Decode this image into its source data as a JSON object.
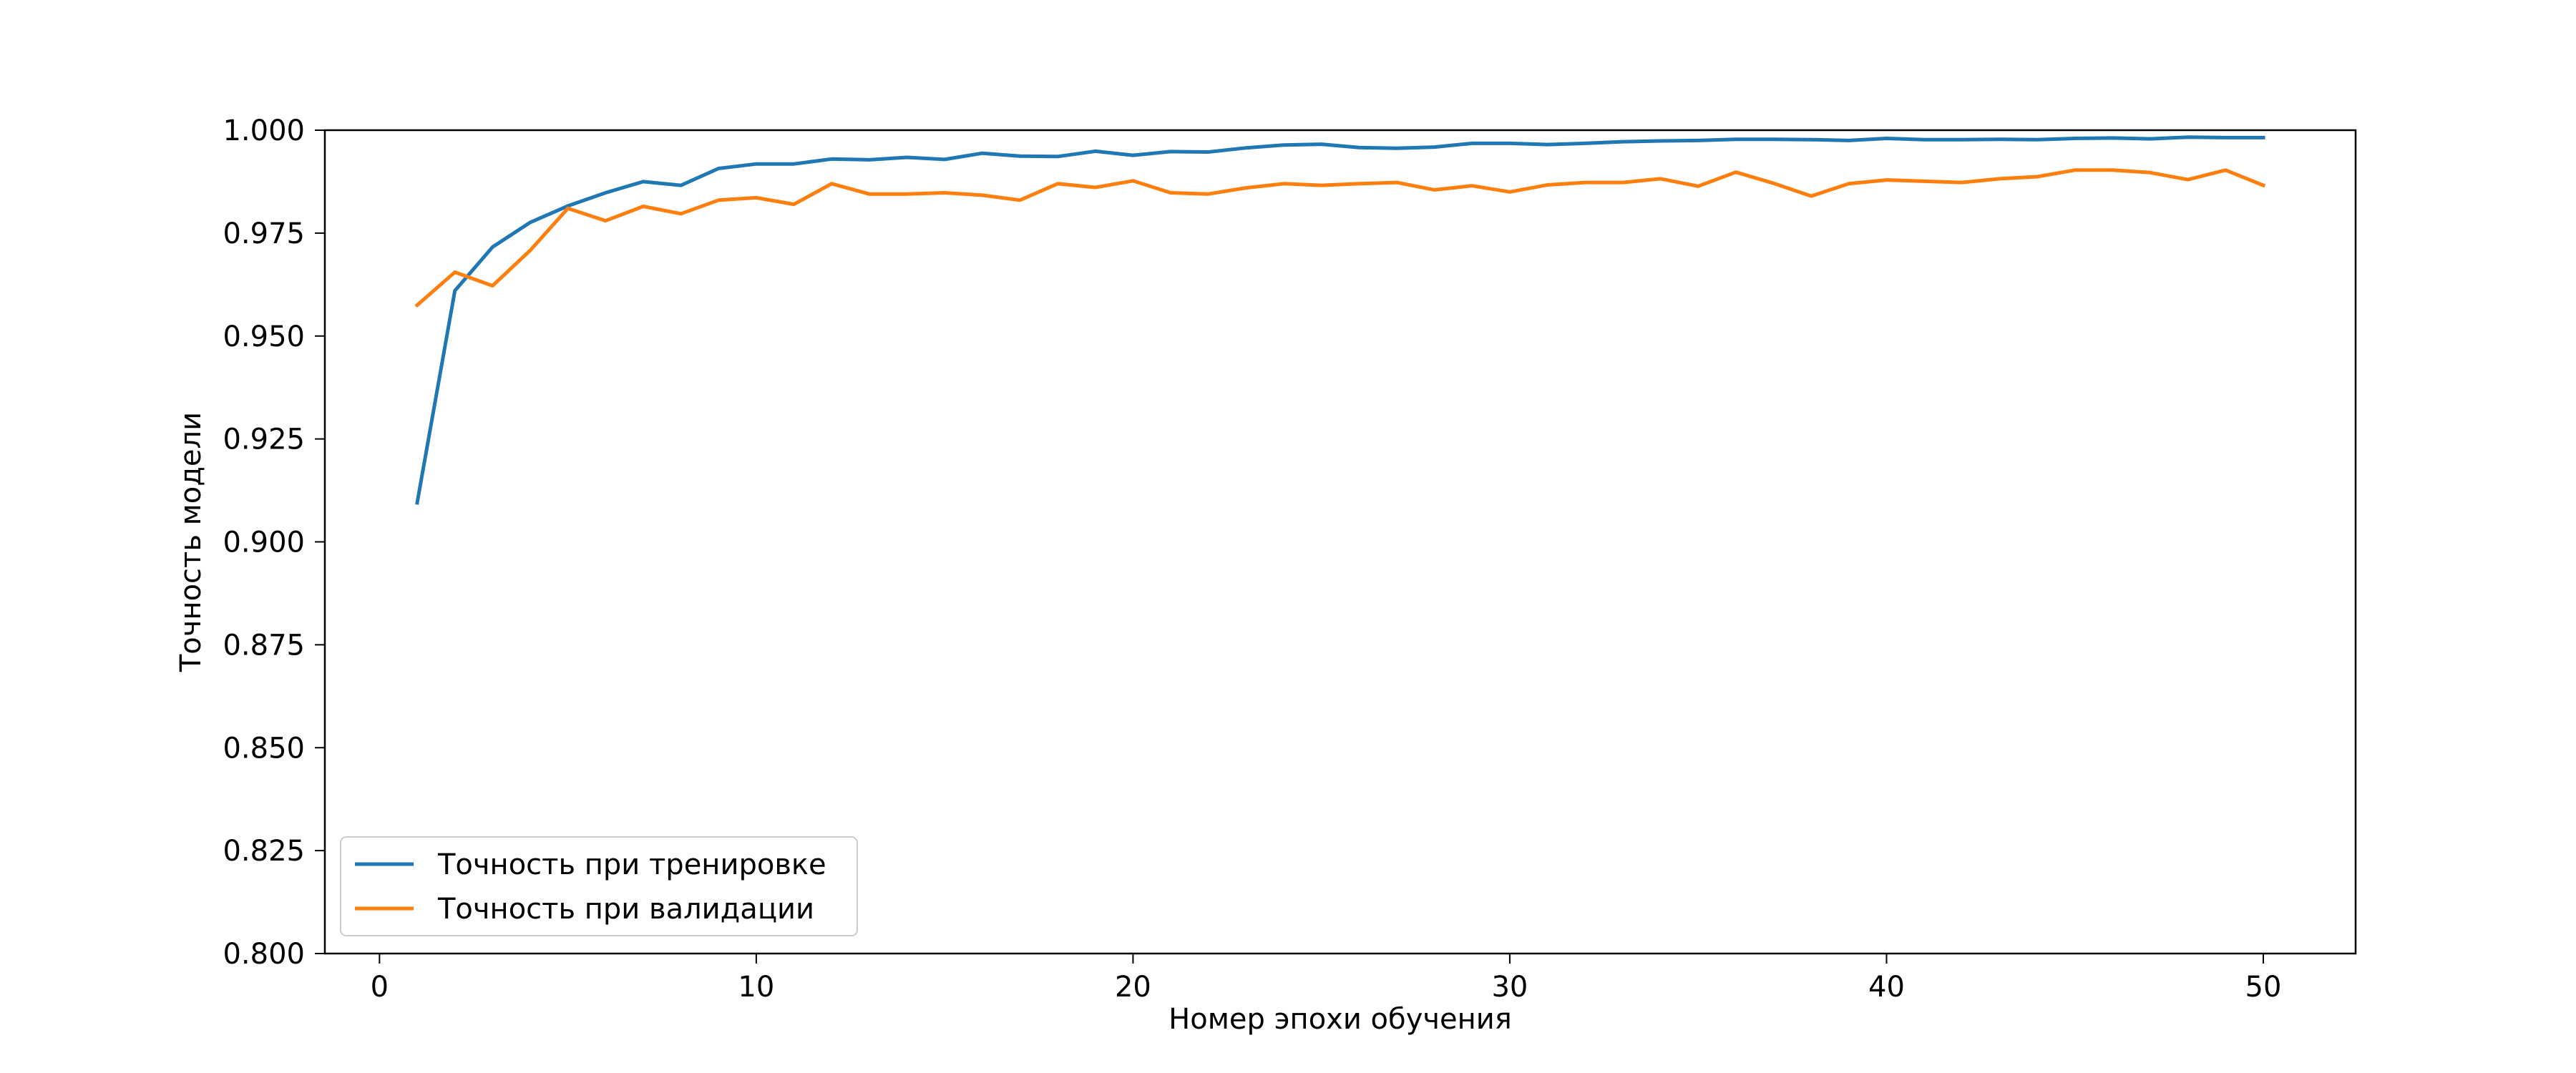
{
  "chart_data": {
    "type": "line",
    "title": "",
    "xlabel": "Номер эпохи обучения",
    "ylabel": "Точность модели",
    "xlim": [
      -1.45,
      52.45
    ],
    "ylim": [
      0.8,
      1.0
    ],
    "xticks": [
      0,
      10,
      20,
      30,
      40,
      50
    ],
    "xtick_labels": [
      "0",
      "10",
      "20",
      "30",
      "40",
      "50"
    ],
    "yticks": [
      0.8,
      0.825,
      0.85,
      0.875,
      0.9,
      0.925,
      0.95,
      0.975,
      1.0
    ],
    "ytick_labels": [
      "0.800",
      "0.825",
      "0.850",
      "0.875",
      "0.900",
      "0.925",
      "0.950",
      "0.975",
      "1.000"
    ],
    "grid": false,
    "legend": "lower-left",
    "x": [
      1,
      2,
      3,
      4,
      5,
      6,
      7,
      8,
      9,
      10,
      11,
      12,
      13,
      14,
      15,
      16,
      17,
      18,
      19,
      20,
      21,
      22,
      23,
      24,
      25,
      26,
      27,
      28,
      29,
      30,
      31,
      32,
      33,
      34,
      35,
      36,
      37,
      38,
      39,
      40,
      41,
      42,
      43,
      44,
      45,
      46,
      47,
      48,
      49,
      50
    ],
    "series": [
      {
        "name": "Точность при тренировке",
        "color": "#1f77b4",
        "values": [
          0.9095,
          0.961,
          0.9716,
          0.9776,
          0.9816,
          0.9848,
          0.9875,
          0.9866,
          0.9907,
          0.9918,
          0.9918,
          0.993,
          0.9928,
          0.9934,
          0.9929,
          0.9944,
          0.9937,
          0.9936,
          0.9949,
          0.9939,
          0.9948,
          0.9947,
          0.9957,
          0.9964,
          0.9966,
          0.9958,
          0.9956,
          0.9959,
          0.9968,
          0.9968,
          0.9965,
          0.9968,
          0.9972,
          0.9974,
          0.9975,
          0.9978,
          0.9978,
          0.9977,
          0.9975,
          0.998,
          0.9977,
          0.9977,
          0.9978,
          0.9977,
          0.998,
          0.9981,
          0.9979,
          0.9983,
          0.9982,
          0.9982
        ]
      },
      {
        "name": "Точность при валидации",
        "color": "#ff7f0e",
        "values": [
          0.9575,
          0.9655,
          0.9622,
          0.9708,
          0.981,
          0.978,
          0.9815,
          0.9797,
          0.983,
          0.9836,
          0.982,
          0.987,
          0.9845,
          0.9845,
          0.9848,
          0.9842,
          0.983,
          0.987,
          0.9861,
          0.9877,
          0.9848,
          0.9845,
          0.986,
          0.987,
          0.9866,
          0.987,
          0.9873,
          0.9855,
          0.9865,
          0.985,
          0.9867,
          0.9873,
          0.9873,
          0.9882,
          0.9864,
          0.9898,
          0.9871,
          0.984,
          0.987,
          0.9879,
          0.9876,
          0.9873,
          0.9882,
          0.9887,
          0.9903,
          0.9903,
          0.9897,
          0.988,
          0.9903,
          0.9866
        ]
      }
    ]
  }
}
